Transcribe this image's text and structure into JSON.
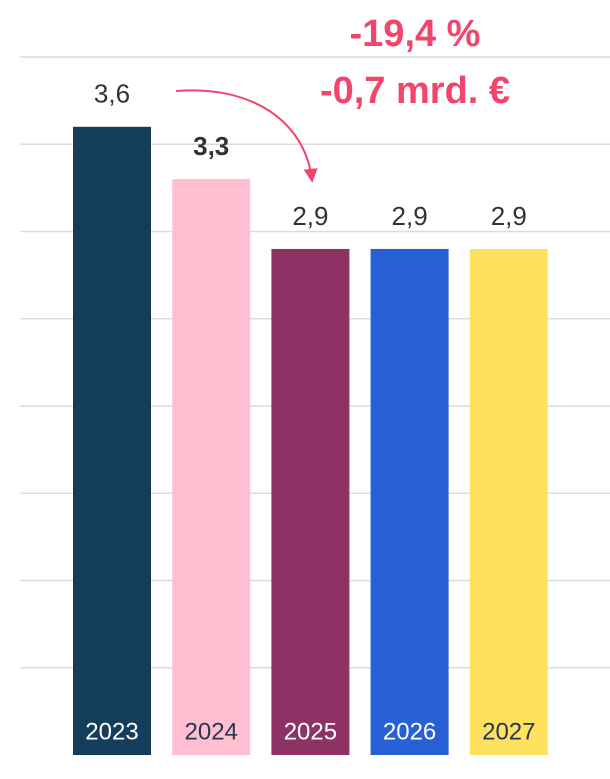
{
  "chart_data": {
    "type": "bar",
    "categories": [
      "2023",
      "2024",
      "2025",
      "2026",
      "2027"
    ],
    "values": [
      3.6,
      3.3,
      2.9,
      2.9,
      2.9
    ],
    "value_labels": [
      "3,6",
      "3,3",
      "2,9",
      "2,9",
      "2,9"
    ],
    "colors": [
      "#143d5c",
      "#ffbfd0",
      "#8e3265",
      "#2660d4",
      "#ffe160"
    ],
    "ylim": [
      0,
      4
    ],
    "yticks": [
      0.5,
      1,
      1.5,
      2,
      2.5,
      3,
      3.5,
      4
    ],
    "grid": true,
    "annotations": [
      "-19,4 %",
      "-0,7 mrd. €"
    ]
  }
}
